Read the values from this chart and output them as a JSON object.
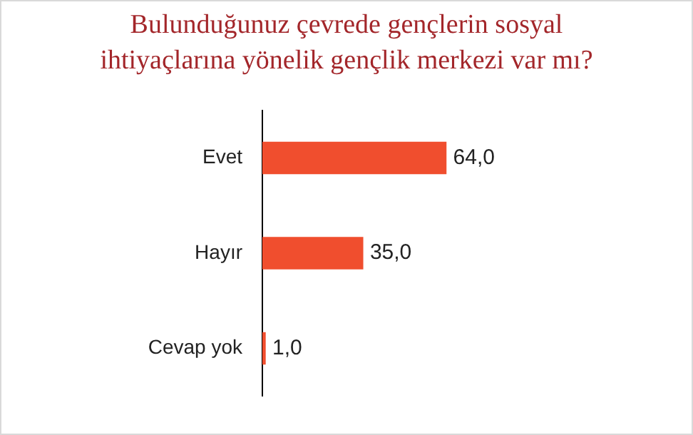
{
  "chart_data": {
    "type": "bar",
    "orientation": "horizontal",
    "title": "Bulunduğunuz çevrede gençlerin sosyal ihtiyaçlarına yönelik gençlik merkezi var mı?",
    "categories": [
      "Evet",
      "Hayır",
      "Cevap yok"
    ],
    "values": [
      64,
      35,
      1
    ],
    "color": "#f04e2e",
    "value_labels": [
      "64,0",
      "35,0",
      "1,0"
    ],
    "tick_labels": "y"
  }
}
